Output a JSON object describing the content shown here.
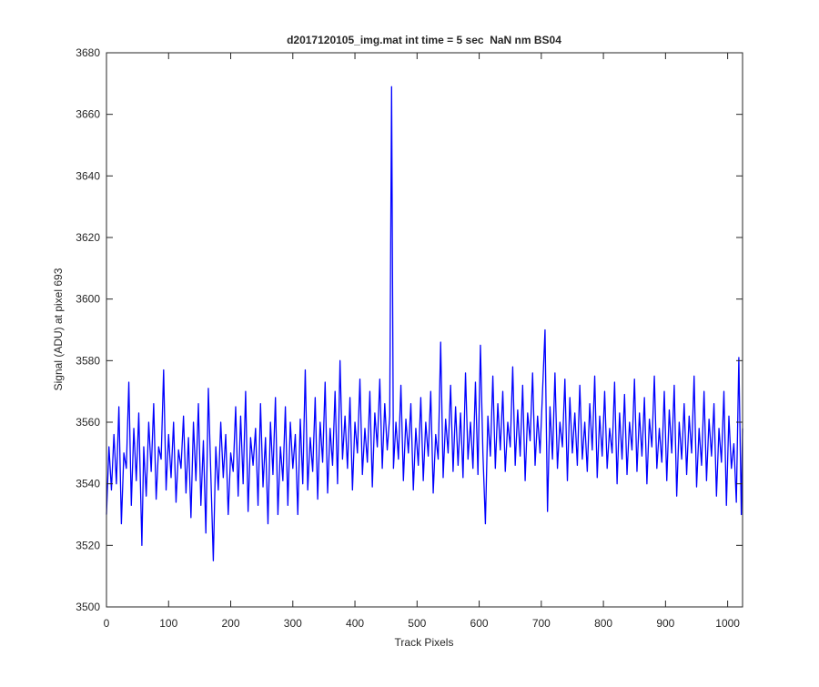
{
  "chart_data": {
    "type": "line",
    "title": "d2017120105_img.mat int time = 5 sec  NaN nm BS04",
    "xlabel": "Track Pixels",
    "ylabel": "Signal (ADU) at pixel 693",
    "xlim": [
      0,
      1024
    ],
    "ylim": [
      3500,
      3680
    ],
    "xticks": [
      0,
      100,
      200,
      300,
      400,
      500,
      600,
      700,
      800,
      900,
      1000
    ],
    "yticks": [
      3500,
      3520,
      3540,
      3560,
      3580,
      3600,
      3620,
      3640,
      3660,
      3680
    ],
    "x": [
      0,
      4,
      8,
      12,
      16,
      20,
      24,
      28,
      32,
      36,
      40,
      44,
      48,
      52,
      57,
      60,
      64,
      68,
      72,
      76,
      80,
      84,
      88,
      92,
      96,
      100,
      104,
      108,
      112,
      116,
      120,
      124,
      128,
      132,
      136,
      140,
      144,
      148,
      152,
      156,
      160,
      164,
      168,
      172,
      176,
      180,
      184,
      188,
      192,
      196,
      200,
      204,
      208,
      212,
      216,
      220,
      224,
      228,
      232,
      236,
      240,
      244,
      248,
      252,
      256,
      260,
      264,
      268,
      272,
      276,
      280,
      284,
      288,
      292,
      296,
      300,
      304,
      308,
      312,
      316,
      320,
      324,
      328,
      332,
      336,
      340,
      344,
      348,
      352,
      356,
      360,
      364,
      368,
      372,
      376,
      380,
      384,
      388,
      392,
      396,
      400,
      404,
      408,
      412,
      416,
      420,
      424,
      428,
      432,
      436,
      440,
      444,
      448,
      452,
      456,
      459,
      462,
      466,
      470,
      474,
      478,
      482,
      486,
      490,
      494,
      498,
      502,
      506,
      510,
      514,
      518,
      522,
      526,
      530,
      534,
      538,
      542,
      546,
      550,
      554,
      558,
      562,
      566,
      570,
      574,
      578,
      582,
      586,
      590,
      594,
      598,
      602,
      606,
      610,
      614,
      618,
      622,
      626,
      630,
      634,
      638,
      642,
      646,
      650,
      654,
      658,
      662,
      666,
      670,
      674,
      678,
      682,
      686,
      690,
      694,
      698,
      702,
      706,
      710,
      714,
      718,
      722,
      726,
      730,
      734,
      738,
      742,
      746,
      750,
      754,
      758,
      762,
      766,
      770,
      774,
      778,
      782,
      786,
      790,
      794,
      798,
      802,
      806,
      810,
      814,
      818,
      822,
      826,
      830,
      834,
      838,
      842,
      846,
      850,
      854,
      858,
      862,
      866,
      870,
      874,
      878,
      882,
      886,
      890,
      894,
      898,
      902,
      906,
      910,
      914,
      918,
      922,
      926,
      930,
      934,
      938,
      942,
      946,
      950,
      954,
      958,
      962,
      966,
      970,
      974,
      978,
      982,
      986,
      990,
      994,
      998,
      1002,
      1006,
      1010,
      1014,
      1018,
      1022,
      1024
    ],
    "series": [
      {
        "color": "#0000ff",
        "values": [
          3530,
          3552,
          3538,
          3556,
          3540,
          3565,
          3527,
          3550,
          3545,
          3573,
          3533,
          3558,
          3541,
          3563,
          3520,
          3552,
          3536,
          3560,
          3544,
          3566,
          3535,
          3552,
          3548,
          3577,
          3538,
          3556,
          3542,
          3560,
          3534,
          3551,
          3545,
          3562,
          3537,
          3555,
          3529,
          3560,
          3541,
          3566,
          3533,
          3554,
          3524,
          3571,
          3543,
          3515,
          3552,
          3538,
          3560,
          3542,
          3556,
          3530,
          3550,
          3544,
          3565,
          3536,
          3562,
          3540,
          3570,
          3531,
          3555,
          3546,
          3558,
          3533,
          3566,
          3539,
          3555,
          3527,
          3560,
          3543,
          3568,
          3530,
          3552,
          3541,
          3565,
          3533,
          3560,
          3545,
          3556,
          3530,
          3561,
          3540,
          3577,
          3538,
          3555,
          3544,
          3568,
          3535,
          3560,
          3547,
          3573,
          3537,
          3558,
          3546,
          3570,
          3540,
          3580,
          3548,
          3562,
          3545,
          3568,
          3538,
          3560,
          3550,
          3574,
          3543,
          3558,
          3547,
          3570,
          3539,
          3563,
          3552,
          3574,
          3545,
          3566,
          3551,
          3562,
          3669,
          3545,
          3560,
          3548,
          3572,
          3541,
          3561,
          3550,
          3566,
          3538,
          3558,
          3546,
          3568,
          3541,
          3560,
          3549,
          3570,
          3537,
          3556,
          3548,
          3586,
          3542,
          3561,
          3550,
          3572,
          3544,
          3565,
          3546,
          3563,
          3542,
          3576,
          3548,
          3560,
          3545,
          3573,
          3543,
          3585,
          3550,
          3527,
          3562,
          3549,
          3575,
          3545,
          3566,
          3551,
          3570,
          3544,
          3560,
          3552,
          3578,
          3546,
          3564,
          3549,
          3572,
          3541,
          3563,
          3554,
          3576,
          3546,
          3562,
          3550,
          3570,
          3590,
          3531,
          3565,
          3548,
          3576,
          3545,
          3560,
          3552,
          3574,
          3541,
          3568,
          3550,
          3563,
          3546,
          3572,
          3548,
          3560,
          3544,
          3566,
          3551,
          3575,
          3542,
          3562,
          3549,
          3570,
          3545,
          3558,
          3550,
          3573,
          3540,
          3563,
          3548,
          3569,
          3543,
          3560,
          3551,
          3574,
          3544,
          3563,
          3549,
          3568,
          3540,
          3561,
          3552,
          3575,
          3545,
          3558,
          3547,
          3570,
          3541,
          3564,
          3550,
          3572,
          3536,
          3560,
          3548,
          3566,
          3543,
          3562,
          3550,
          3575,
          3539,
          3558,
          3546,
          3570,
          3541,
          3561,
          3549,
          3566,
          3536,
          3558,
          3547,
          3570,
          3533,
          3562,
          3545,
          3553,
          3534,
          3581,
          3530,
          3558
        ]
      }
    ]
  }
}
